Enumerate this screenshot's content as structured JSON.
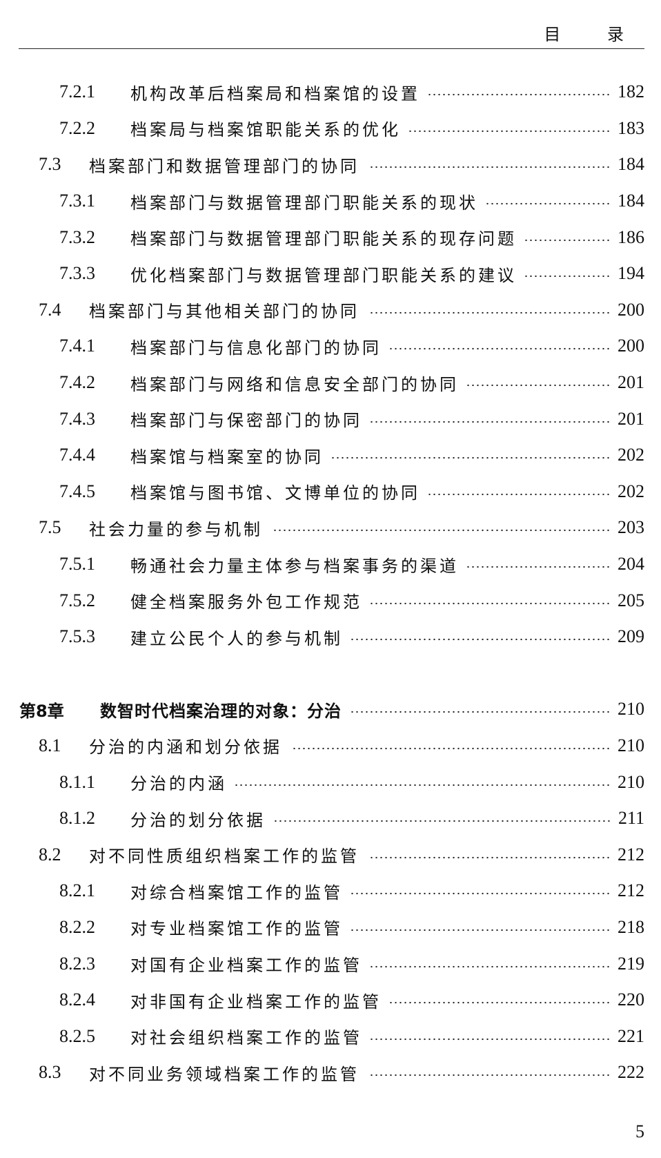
{
  "header": {
    "title": "目 录"
  },
  "entries": [
    {
      "level": 3,
      "num": "7.2.1",
      "title": "机构改革后档案局和档案馆的设置",
      "page": "182"
    },
    {
      "level": 3,
      "num": "7.2.2",
      "title": "档案局与档案馆职能关系的优化",
      "page": "183"
    },
    {
      "level": 2,
      "num": "7.3",
      "title": "档案部门和数据管理部门的协同",
      "page": "184"
    },
    {
      "level": 3,
      "num": "7.3.1",
      "title": "档案部门与数据管理部门职能关系的现状",
      "page": "184"
    },
    {
      "level": 3,
      "num": "7.3.2",
      "title": "档案部门与数据管理部门职能关系的现存问题",
      "page": "186"
    },
    {
      "level": 3,
      "num": "7.3.3",
      "title": "优化档案部门与数据管理部门职能关系的建议",
      "page": "194"
    },
    {
      "level": 2,
      "num": "7.4",
      "title": "档案部门与其他相关部门的协同",
      "page": "200"
    },
    {
      "level": 3,
      "num": "7.4.1",
      "title": "档案部门与信息化部门的协同",
      "page": "200"
    },
    {
      "level": 3,
      "num": "7.4.2",
      "title": "档案部门与网络和信息安全部门的协同",
      "page": "201"
    },
    {
      "level": 3,
      "num": "7.4.3",
      "title": "档案部门与保密部门的协同",
      "page": "201"
    },
    {
      "level": 3,
      "num": "7.4.4",
      "title": "档案馆与档案室的协同",
      "page": "202"
    },
    {
      "level": 3,
      "num": "7.4.5",
      "title": "档案馆与图书馆、文博单位的协同",
      "page": "202"
    },
    {
      "level": 2,
      "num": "7.5",
      "title": "社会力量的参与机制",
      "page": "203"
    },
    {
      "level": 3,
      "num": "7.5.1",
      "title": "畅通社会力量主体参与档案事务的渠道",
      "page": "204"
    },
    {
      "level": 3,
      "num": "7.5.2",
      "title": "健全档案服务外包工作规范",
      "page": "205"
    },
    {
      "level": 3,
      "num": "7.5.3",
      "title": "建立公民个人的参与机制",
      "page": "209"
    },
    {
      "level": 0
    },
    {
      "level": 1,
      "num": "第8章",
      "title": "数智时代档案治理的对象：分治",
      "page": "210"
    },
    {
      "level": 2,
      "num": "8.1",
      "title": "分治的内涵和划分依据",
      "page": "210"
    },
    {
      "level": 3,
      "num": "8.1.1",
      "title": "分治的内涵",
      "page": "210"
    },
    {
      "level": 3,
      "num": "8.1.2",
      "title": "分治的划分依据",
      "page": "211"
    },
    {
      "level": 2,
      "num": "8.2",
      "title": "对不同性质组织档案工作的监管",
      "page": "212"
    },
    {
      "level": 3,
      "num": "8.2.1",
      "title": "对综合档案馆工作的监管",
      "page": "212"
    },
    {
      "level": 3,
      "num": "8.2.2",
      "title": "对专业档案馆工作的监管",
      "page": "218"
    },
    {
      "level": 3,
      "num": "8.2.3",
      "title": "对国有企业档案工作的监管",
      "page": "219"
    },
    {
      "level": 3,
      "num": "8.2.4",
      "title": "对非国有企业档案工作的监管",
      "page": "220"
    },
    {
      "level": 3,
      "num": "8.2.5",
      "title": "对社会组织档案工作的监管",
      "page": "221"
    },
    {
      "level": 2,
      "num": "8.3",
      "title": "对不同业务领域档案工作的监管",
      "page": "222"
    }
  ],
  "folio": "5"
}
